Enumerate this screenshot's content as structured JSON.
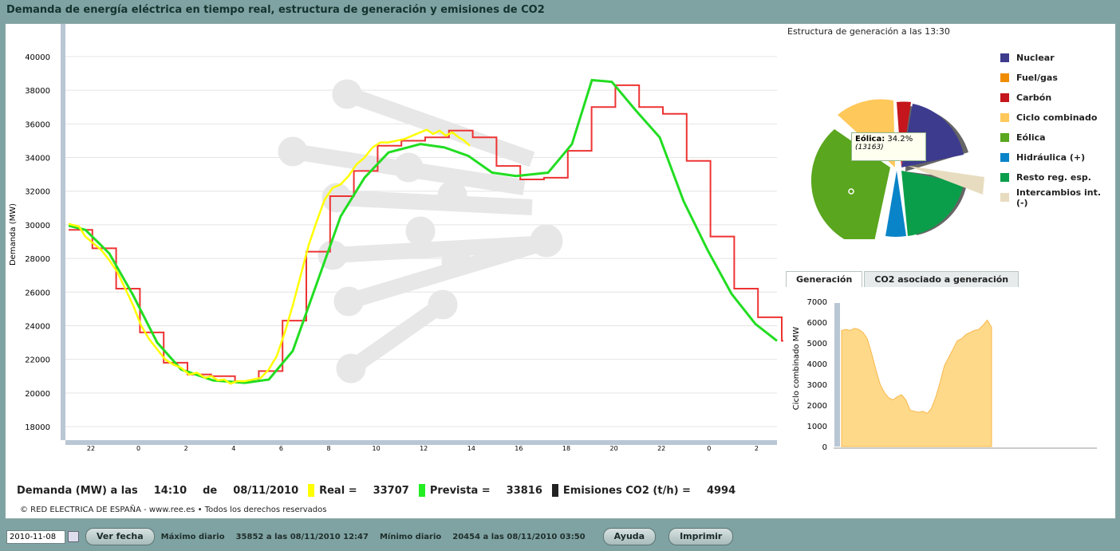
{
  "title": "Demanda de energía eléctrica en tiempo real, estructura de generación y emisiones de CO2",
  "main_chart": {
    "ylabel": "Demanda (MW)",
    "yticks": [
      "18000",
      "20000",
      "22000",
      "24000",
      "26000",
      "28000",
      "30000",
      "32000",
      "34000",
      "36000",
      "38000",
      "40000"
    ],
    "xticks": [
      "22",
      "0",
      "2",
      "4",
      "6",
      "8",
      "10",
      "12",
      "14",
      "16",
      "18",
      "20",
      "22",
      "0",
      "2"
    ],
    "colors": {
      "real": "#ffff00",
      "prevista": "#22dd22",
      "programada": "#ee3333"
    }
  },
  "status": {
    "demanda_label": "Demanda (MW) a las",
    "time": "14:10",
    "de_label": "de",
    "date": "08/11/2010",
    "real_label": "Real =",
    "real_value": "33707",
    "prevista_label": "Prevista =",
    "prevista_value": "33816",
    "emisiones_label": "Emisiones CO2 (t/h) =",
    "emisiones_value": "4994"
  },
  "copyright": "© RED ELECTRICA DE ESPAÑA - www.ree.es • Todos los derechos reservados",
  "pie": {
    "title": "Estructura de generación a las 13:30",
    "tooltip_label": "Eólica:",
    "tooltip_value": "34.2%",
    "tooltip_sub": "(13163)",
    "legend": [
      {
        "label": "Nuclear",
        "color": "#3d3b8e"
      },
      {
        "label": "Fuel/gas",
        "color": "#f08c00"
      },
      {
        "label": "Carbón",
        "color": "#c4161c"
      },
      {
        "label": "Ciclo combinado",
        "color": "#ffc85a"
      },
      {
        "label": "Eólica",
        "color": "#5aa61e"
      },
      {
        "label": "Hidráulica (+)",
        "color": "#0a84c8"
      },
      {
        "label": "Resto reg. esp.",
        "color": "#0b9e4a"
      },
      {
        "label": "Intercambios int. (-)",
        "color": "#e8dcc0"
      }
    ]
  },
  "tabs": [
    "Generación",
    "CO2 asociado a generación"
  ],
  "area_chart": {
    "ylabel": "Ciclo combinado MW",
    "yticks": [
      "0",
      "1000",
      "2000",
      "3000",
      "4000",
      "5000",
      "6000",
      "7000"
    ],
    "color": "#ffd98a"
  },
  "footer": {
    "date_value": "2010-11-08",
    "ver_fecha": "Ver fecha",
    "maximo_label": "Máximo diario",
    "maximo_value": "35852 a las 08/11/2010 12:47",
    "minimo_label": "Mínimo diario",
    "minimo_value": "20454 a las 08/11/2010 03:50",
    "ayuda": "Ayuda",
    "imprimir": "Imprimir"
  }
}
